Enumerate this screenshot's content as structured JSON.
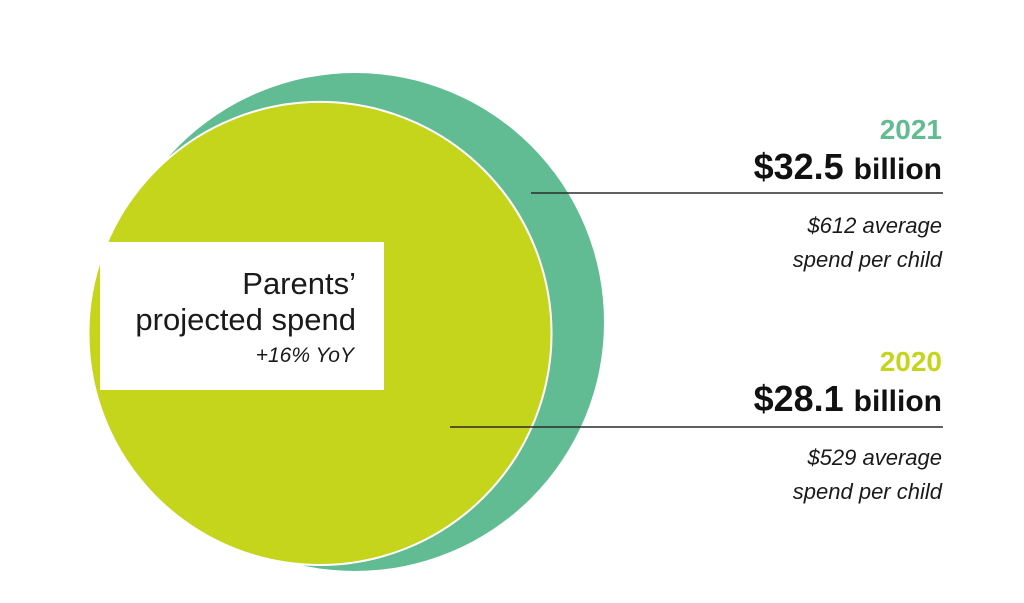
{
  "colors": {
    "y2021": "#62bc93",
    "y2020": "#c4d51c",
    "line": "#2b2b2b"
  },
  "chart_data": {
    "type": "area",
    "title": "Parents’ projected spend",
    "title_line1": "Parents’",
    "title_line2": "projected spend",
    "change": "+16% YoY",
    "series": [
      {
        "name": "2021",
        "value": 32.5,
        "unit": "billion",
        "display": "$32.5",
        "avg_spend": "$612 average",
        "avg_suffix": "spend per child"
      },
      {
        "name": "2020",
        "value": 28.1,
        "unit": "billion",
        "display": "$28.1",
        "avg_spend": "$529 average",
        "avg_suffix": "spend per child"
      }
    ]
  }
}
